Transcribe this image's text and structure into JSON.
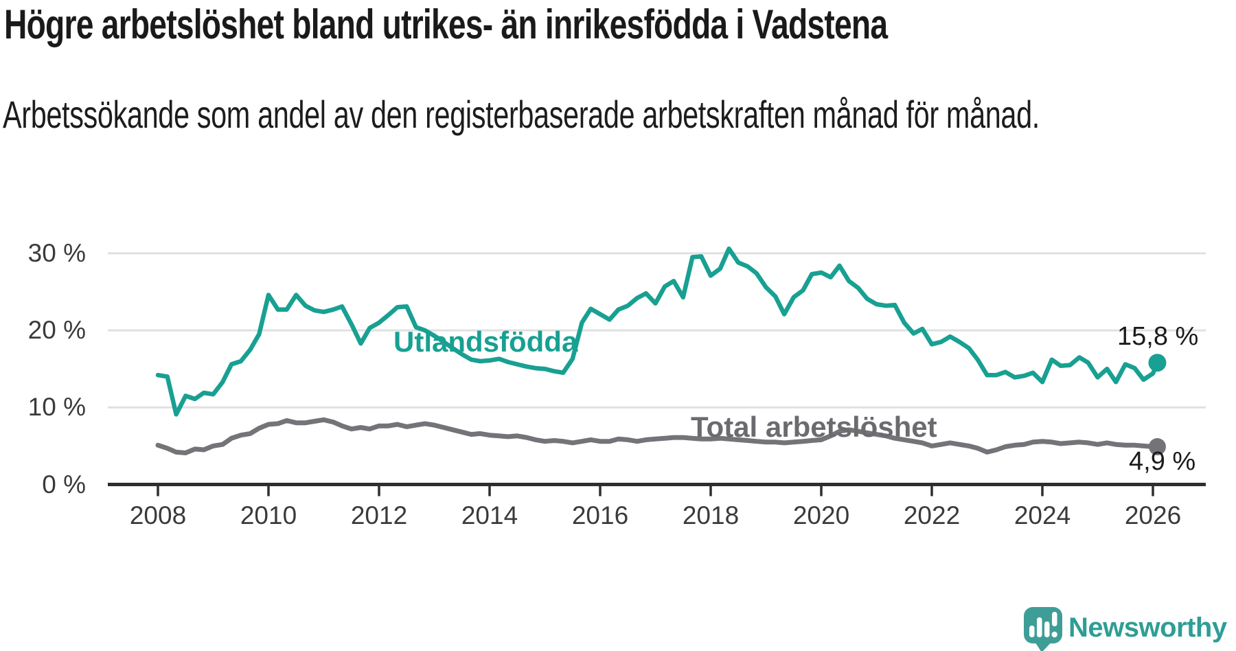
{
  "header": {
    "title": "Högre arbetslöshet bland utrikes- än inrikesfödda i Vadstena",
    "subtitle": "Arbetssökande som andel av den registerbaserade arbetskraften månad för månad."
  },
  "chart_data": {
    "type": "line",
    "title": "Högre arbetslöshet bland utrikes- än inrikesfödda i Vadstena",
    "xlabel": "",
    "ylabel": "",
    "unit": "%",
    "grid": "horizontal",
    "legend_position": "inline-labels",
    "xlim": [
      2007.9,
      2026.6
    ],
    "ylim": [
      0,
      31.5
    ],
    "x_ticks": [
      2008,
      2010,
      2012,
      2014,
      2016,
      2018,
      2020,
      2022,
      2024,
      2026
    ],
    "y_ticks": [
      0,
      10,
      20,
      30
    ],
    "y_tick_labels": [
      "0 %",
      "10 %",
      "20 %",
      "30 %"
    ],
    "x": [
      2008,
      2008.17,
      2008.33,
      2008.5,
      2008.67,
      2008.83,
      2009,
      2009.17,
      2009.33,
      2009.5,
      2009.67,
      2009.83,
      2010,
      2010.17,
      2010.33,
      2010.5,
      2010.67,
      2010.83,
      2011,
      2011.17,
      2011.33,
      2011.5,
      2011.67,
      2011.83,
      2012,
      2012.17,
      2012.33,
      2012.5,
      2012.67,
      2012.83,
      2013,
      2013.17,
      2013.33,
      2013.5,
      2013.67,
      2013.83,
      2014,
      2014.17,
      2014.33,
      2014.5,
      2014.67,
      2014.83,
      2015,
      2015.17,
      2015.33,
      2015.5,
      2015.67,
      2015.83,
      2016,
      2016.17,
      2016.33,
      2016.5,
      2016.67,
      2016.83,
      2017,
      2017.17,
      2017.33,
      2017.5,
      2017.67,
      2017.83,
      2018,
      2018.17,
      2018.33,
      2018.5,
      2018.67,
      2018.83,
      2019,
      2019.17,
      2019.33,
      2019.5,
      2019.67,
      2019.83,
      2020,
      2020.17,
      2020.33,
      2020.5,
      2020.67,
      2020.83,
      2021,
      2021.17,
      2021.33,
      2021.5,
      2021.67,
      2021.83,
      2022,
      2022.17,
      2022.33,
      2022.5,
      2022.67,
      2022.83,
      2023,
      2023.17,
      2023.33,
      2023.5,
      2023.67,
      2023.83,
      2024,
      2024.17,
      2024.33,
      2024.5,
      2024.67,
      2024.83,
      2025,
      2025.17,
      2025.33,
      2025.5,
      2025.67,
      2025.83,
      2026,
      2026.08
    ],
    "series": [
      {
        "name": "Utlandsfödda",
        "color": "#18a092",
        "line_width": 6.5,
        "end_label": "15,8 %",
        "end_value": 15.8,
        "values": [
          14.2,
          14.0,
          9.1,
          11.5,
          11.1,
          11.9,
          11.7,
          13.3,
          15.6,
          16.0,
          17.5,
          19.5,
          24.6,
          22.7,
          22.7,
          24.6,
          23.2,
          22.6,
          22.4,
          22.7,
          23.1,
          20.8,
          18.3,
          20.3,
          21.0,
          22.0,
          23.0,
          23.1,
          20.4,
          20.0,
          19.3,
          18.5,
          17.7,
          16.9,
          16.2,
          16.0,
          16.1,
          16.3,
          15.9,
          15.6,
          15.3,
          15.1,
          15.0,
          14.7,
          14.5,
          16.3,
          21.0,
          22.8,
          22.1,
          21.4,
          22.7,
          23.2,
          24.2,
          24.8,
          23.5,
          25.7,
          26.4,
          24.3,
          29.5,
          29.6,
          27.1,
          28.0,
          30.6,
          28.8,
          28.3,
          27.4,
          25.6,
          24.4,
          22.1,
          24.3,
          25.2,
          27.3,
          27.5,
          26.9,
          28.4,
          26.4,
          25.5,
          24.1,
          23.4,
          23.2,
          23.3,
          21.0,
          19.6,
          20.2,
          18.2,
          18.5,
          19.2,
          18.5,
          17.7,
          16.2,
          14.2,
          14.2,
          14.6,
          13.9,
          14.1,
          14.5,
          13.3,
          16.2,
          15.4,
          15.5,
          16.5,
          15.8,
          13.9,
          15.0,
          13.3,
          15.6,
          15.1,
          13.6,
          14.4,
          15.8
        ]
      },
      {
        "name": "Total arbetslöshet",
        "color": "#747478",
        "line_width": 7,
        "end_label": "4,9 %",
        "end_value": 4.9,
        "values": [
          5.1,
          4.7,
          4.2,
          4.1,
          4.6,
          4.5,
          5.0,
          5.2,
          6.0,
          6.4,
          6.6,
          7.3,
          7.8,
          7.9,
          8.3,
          8.0,
          8.0,
          8.2,
          8.4,
          8.1,
          7.6,
          7.2,
          7.4,
          7.2,
          7.6,
          7.6,
          7.8,
          7.5,
          7.7,
          7.9,
          7.7,
          7.4,
          7.1,
          6.8,
          6.5,
          6.6,
          6.4,
          6.3,
          6.2,
          6.3,
          6.1,
          5.8,
          5.6,
          5.7,
          5.6,
          5.4,
          5.6,
          5.8,
          5.6,
          5.6,
          5.9,
          5.8,
          5.6,
          5.8,
          5.9,
          6.0,
          6.1,
          6.1,
          6.0,
          5.9,
          5.9,
          6.0,
          5.9,
          5.8,
          5.7,
          5.6,
          5.5,
          5.5,
          5.4,
          5.5,
          5.6,
          5.7,
          5.8,
          6.3,
          6.9,
          7.1,
          6.9,
          6.7,
          6.5,
          6.3,
          6.0,
          5.8,
          5.6,
          5.4,
          5.0,
          5.2,
          5.4,
          5.2,
          5.0,
          4.7,
          4.2,
          4.5,
          4.9,
          5.1,
          5.2,
          5.5,
          5.6,
          5.5,
          5.3,
          5.4,
          5.5,
          5.4,
          5.2,
          5.4,
          5.2,
          5.1,
          5.1,
          5.0,
          4.9,
          4.9
        ]
      }
    ]
  },
  "branding": {
    "name": "Newsworthy"
  },
  "colors": {
    "accent_teal": "#18a092",
    "line_gray": "#747478",
    "grid": "#e0e0e0",
    "axis": "#2e2e2e",
    "text_dark": "#1a1a1a",
    "tick_text": "#3a3a3a",
    "logo_teal": "#3e9e97"
  }
}
